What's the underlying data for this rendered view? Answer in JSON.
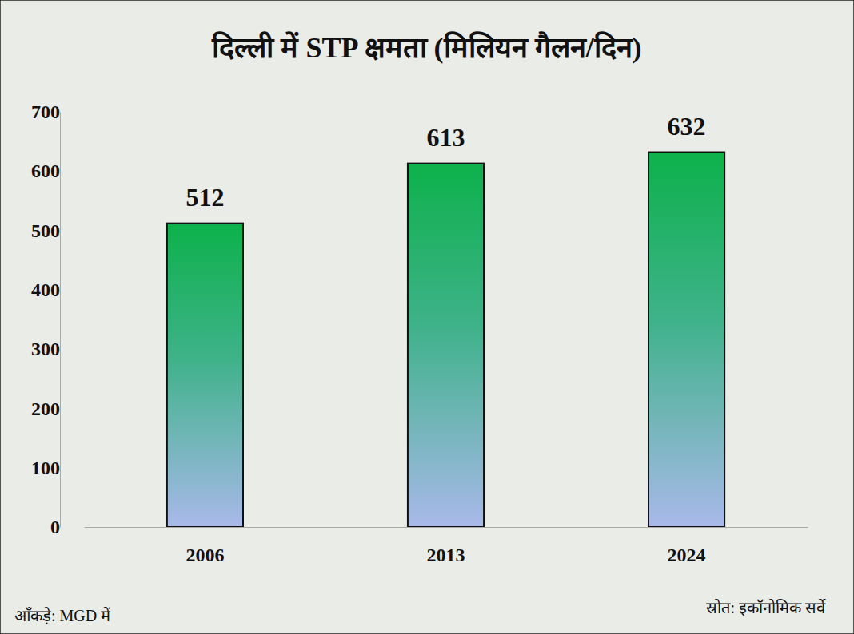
{
  "chart_data": {
    "type": "bar",
    "title": "दिल्ली में STP क्षमता (मिलियन गैलन/दिन)",
    "categories": [
      "2006",
      "2013",
      "2024"
    ],
    "values": [
      512,
      613,
      632
    ],
    "color": "#0db14b",
    "ylim": [
      0,
      700
    ],
    "yticks": [
      0,
      100,
      200,
      300,
      400,
      500,
      600,
      700
    ],
    "grid": false,
    "data_labels": true,
    "annotations": [
      "आँकड़े: MGD में",
      "स्रोत: इकॉनोमिक सर्वे"
    ]
  }
}
